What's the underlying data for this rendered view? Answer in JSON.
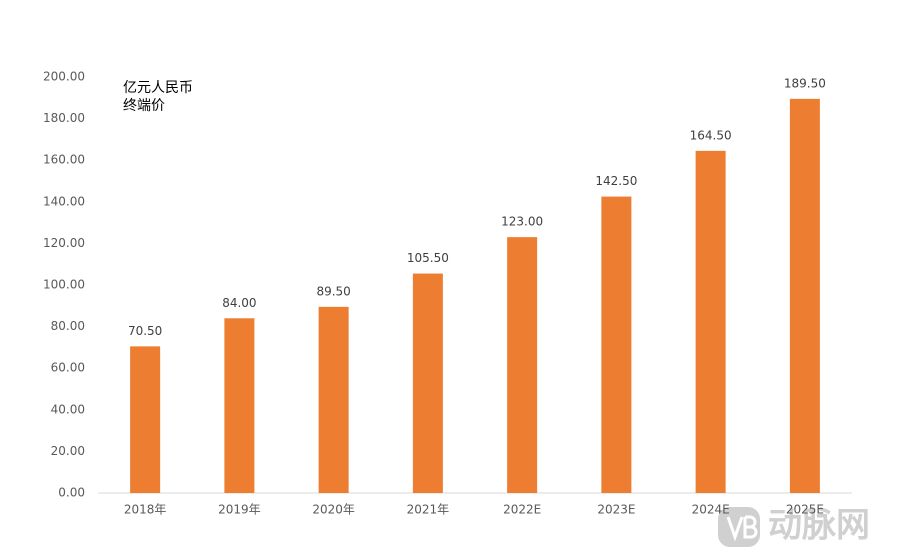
{
  "chart_data": {
    "type": "bar",
    "annotations": [
      "亿元人民币",
      "终端价"
    ],
    "categories": [
      "2018年",
      "2019年",
      "2020年",
      "2021年",
      "2022E",
      "2023E",
      "2024E",
      "2025E"
    ],
    "values": [
      70.5,
      84,
      89.5,
      105.5,
      123,
      142.5,
      164.5,
      189.5
    ],
    "value_labels": [
      "70.50",
      "84.00",
      "89.50",
      "105.50",
      "123.00",
      "142.50",
      "164.50",
      "189.50"
    ],
    "color": "#ed7d31",
    "ylim": [
      0,
      200
    ],
    "yticks": [
      {
        "value": 0,
        "label": "0.00"
      },
      {
        "value": 20,
        "label": "20.00"
      },
      {
        "value": 40,
        "label": "40.00"
      },
      {
        "value": 60,
        "label": "60.00"
      },
      {
        "value": 80,
        "label": "80.00"
      },
      {
        "value": 100,
        "label": "100.00"
      },
      {
        "value": 120,
        "label": "120.00"
      },
      {
        "value": 140,
        "label": "140.00"
      },
      {
        "value": 160,
        "label": "160.00"
      },
      {
        "value": 180,
        "label": "180.00"
      },
      {
        "value": 200,
        "label": "200.00"
      }
    ],
    "grid": false,
    "watermark": "动脉网"
  }
}
